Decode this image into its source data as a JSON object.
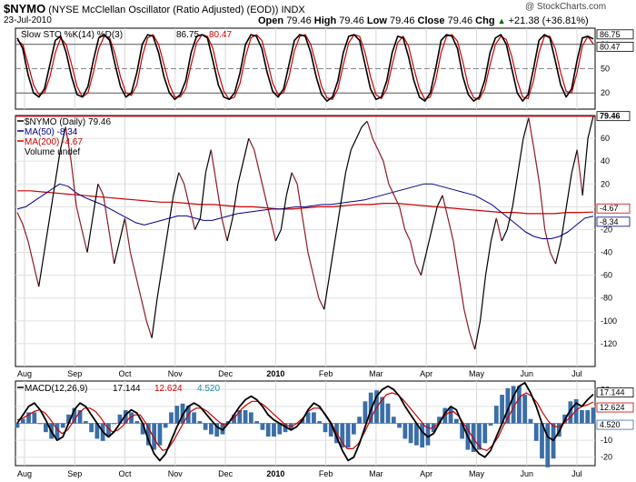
{
  "header": {
    "symbol": "$NYMO",
    "description": "(NYSE McClellan Oscillator (Ratio Adjusted) (EOD))",
    "exchange": "INDX",
    "watermark": "@ StockCharts.com",
    "date": "23-Jul-2010",
    "open_label": "Open",
    "open": "79.46",
    "high_label": "High",
    "high": "79.46",
    "low_label": "Low",
    "low": "79.46",
    "close_label": "Close",
    "close": "79.46",
    "chg_label": "Chg",
    "chg": "+21.38 (+36.81%)",
    "chg_arrow": "▲"
  },
  "chart_data": [
    {
      "type": "line",
      "name": "stochastic",
      "legend": {
        "title": "Slow STO %K(14) %D(3)",
        "k_value": "86.75",
        "d_value": "80.47"
      },
      "ylim": [
        0,
        100
      ],
      "ticks": [
        20,
        50,
        80
      ],
      "reference_lines": [
        20,
        50,
        80
      ],
      "value_labels": [
        "86.75",
        "80.47"
      ],
      "colors": {
        "k": "#000000",
        "d": "#cc0000"
      },
      "series": [
        {
          "name": "%K",
          "values": [
            88,
            75,
            42,
            20,
            15,
            25,
            55,
            85,
            90,
            70,
            40,
            18,
            15,
            28,
            60,
            88,
            92,
            85,
            55,
            28,
            15,
            20,
            45,
            80,
            92,
            90,
            70,
            40,
            20,
            12,
            18,
            35,
            70,
            90,
            92,
            88,
            60,
            30,
            15,
            12,
            20,
            45,
            80,
            92,
            90,
            75,
            45,
            22,
            15,
            25,
            55,
            85,
            92,
            90,
            70,
            40,
            18,
            10,
            15,
            35,
            70,
            90,
            92,
            85,
            55,
            25,
            12,
            15,
            35,
            70,
            90,
            88,
            65,
            35,
            15,
            10,
            20,
            50,
            85,
            92,
            90,
            75,
            40,
            18,
            10,
            15,
            35,
            70,
            88,
            92,
            80,
            50,
            20,
            10,
            18,
            50,
            85,
            92,
            88,
            60,
            30,
            15,
            25,
            60,
            88,
            90,
            86.75
          ]
        },
        {
          "name": "%D",
          "values": [
            85,
            80,
            55,
            30,
            18,
            20,
            40,
            70,
            88,
            80,
            55,
            28,
            15,
            20,
            45,
            75,
            90,
            88,
            68,
            40,
            20,
            17,
            30,
            65,
            88,
            92,
            80,
            55,
            30,
            15,
            15,
            25,
            55,
            82,
            92,
            90,
            75,
            45,
            22,
            12,
            15,
            32,
            65,
            88,
            92,
            85,
            60,
            32,
            18,
            20,
            40,
            72,
            90,
            92,
            80,
            55,
            28,
            14,
            12,
            25,
            55,
            82,
            92,
            90,
            70,
            40,
            18,
            13,
            25,
            55,
            82,
            90,
            78,
            50,
            25,
            12,
            15,
            35,
            70,
            90,
            92,
            84,
            58,
            28,
            14,
            12,
            25,
            55,
            80,
            90,
            86,
            65,
            35,
            15,
            13,
            35,
            70,
            90,
            90,
            75,
            45,
            22,
            20,
            45,
            78,
            90,
            80.47
          ]
        }
      ]
    },
    {
      "type": "line",
      "name": "oscillator",
      "legend": [
        {
          "label": "$NYMO (Daily)",
          "value": "79.46"
        },
        {
          "label": "MA(50)",
          "value": "-8.34"
        },
        {
          "label": "MA(200)",
          "value": "-4.67"
        },
        {
          "label": "Volume undef",
          "value": ""
        }
      ],
      "ylim": [
        -140,
        80
      ],
      "ticks": [
        -120,
        -100,
        -80,
        -60,
        -40,
        -20,
        0,
        20,
        40,
        60
      ],
      "value_labels": [
        "79.46",
        "-4.67",
        "-8.34"
      ],
      "colors": {
        "dark": "#000000",
        "red": "#8b1a2b",
        "ma50": "#00008b",
        "ma200": "#cc0000"
      },
      "series": [
        {
          "name": "$NYMO",
          "segment_colors": "alternating by trend",
          "values": [
            -5,
            -15,
            -30,
            -50,
            -70,
            -40,
            -10,
            20,
            50,
            70,
            40,
            0,
            -20,
            -40,
            -10,
            20,
            10,
            -20,
            -50,
            -30,
            -10,
            -40,
            -60,
            -80,
            -100,
            -115,
            -80,
            -50,
            -20,
            10,
            30,
            20,
            0,
            -20,
            -10,
            30,
            50,
            20,
            -10,
            -30,
            -10,
            20,
            40,
            60,
            50,
            30,
            10,
            -10,
            -30,
            -20,
            10,
            30,
            20,
            -10,
            -40,
            -60,
            -80,
            -90,
            -60,
            -30,
            0,
            30,
            50,
            60,
            70,
            75,
            60,
            50,
            40,
            20,
            10,
            0,
            -20,
            -30,
            -50,
            -60,
            -40,
            -20,
            0,
            10,
            -10,
            -30,
            -60,
            -90,
            -110,
            -125,
            -100,
            -60,
            -30,
            -10,
            -30,
            -20,
            0,
            30,
            60,
            78,
            50,
            20,
            -20,
            -40,
            -50,
            -30,
            0,
            30,
            50,
            10,
            60,
            79.46
          ]
        },
        {
          "name": "MA(50)",
          "values": [
            -2,
            0,
            5,
            10,
            15,
            20,
            18,
            12,
            8,
            5,
            2,
            -2,
            -6,
            -10,
            -14,
            -16,
            -14,
            -12,
            -10,
            -8,
            -8,
            -10,
            -12,
            -12,
            -10,
            -8,
            -6,
            -5,
            -4,
            -3,
            -2,
            -2,
            -1,
            0,
            0,
            1,
            2,
            2,
            3,
            4,
            5,
            6,
            8,
            10,
            12,
            14,
            16,
            18,
            20,
            20,
            18,
            16,
            14,
            12,
            10,
            6,
            2,
            -4,
            -10,
            -16,
            -22,
            -26,
            -28,
            -28,
            -26,
            -22,
            -16,
            -10,
            -8.34
          ]
        },
        {
          "name": "MA(200)",
          "values": [
            14,
            14,
            13,
            12,
            11,
            10,
            9,
            8,
            7,
            6,
            5,
            4,
            4,
            3,
            2,
            2,
            1,
            0,
            0,
            -1,
            -2,
            -2,
            -1,
            0,
            0,
            1,
            2,
            2,
            3,
            3,
            2,
            1,
            0,
            -1,
            -2,
            -3,
            -4,
            -5,
            -5,
            -6,
            -6,
            -6,
            -5,
            -5,
            -4.67
          ]
        }
      ]
    },
    {
      "type": "line",
      "name": "macd",
      "legend": {
        "title": "MACD(12,26,9)",
        "macd": "17.144",
        "signal": "12.624",
        "histogram": "4.520"
      },
      "ylim": [
        -25,
        25
      ],
      "ticks": [
        -20,
        -10,
        0,
        10,
        20
      ],
      "value_labels": [
        "17.144",
        "12.624",
        "4.520"
      ],
      "colors": {
        "macd": "#000000",
        "signal": "#cc0000",
        "histogram": "#3a6ea8"
      },
      "series": [
        {
          "name": "MACD",
          "values": [
            0,
            5,
            10,
            12,
            8,
            2,
            -5,
            -10,
            -8,
            0,
            8,
            12,
            10,
            5,
            0,
            -5,
            -8,
            -5,
            0,
            5,
            8,
            6,
            0,
            -10,
            -18,
            -22,
            -18,
            -10,
            -2,
            5,
            10,
            12,
            10,
            6,
            2,
            -2,
            -4,
            0,
            5,
            10,
            14,
            16,
            14,
            10,
            5,
            2,
            0,
            -2,
            -4,
            -2,
            2,
            8,
            12,
            10,
            5,
            0,
            -8,
            -16,
            -22,
            -20,
            -12,
            -2,
            8,
            16,
            20,
            22,
            20,
            16,
            10,
            5,
            0,
            -5,
            -8,
            -6,
            0,
            6,
            10,
            8,
            0,
            -8,
            -14,
            -18,
            -20,
            -16,
            -8,
            0,
            8,
            16,
            22,
            24,
            18,
            10,
            0,
            -8,
            -10,
            -5,
            2,
            8,
            12,
            10,
            14,
            17.144
          ]
        },
        {
          "name": "Signal",
          "values": [
            2,
            3,
            5,
            7,
            8,
            6,
            2,
            -3,
            -6,
            -4,
            1,
            6,
            9,
            9,
            7,
            3,
            -2,
            -5,
            -4,
            -1,
            3,
            5,
            5,
            0,
            -6,
            -12,
            -16,
            -15,
            -10,
            -4,
            2,
            7,
            9,
            9,
            7,
            4,
            1,
            -1,
            1,
            4,
            8,
            11,
            13,
            13,
            11,
            8,
            5,
            2,
            -1,
            -2,
            0,
            3,
            7,
            9,
            9,
            6,
            1,
            -5,
            -11,
            -15,
            -15,
            -12,
            -6,
            1,
            8,
            13,
            17,
            18,
            17,
            14,
            10,
            6,
            2,
            -2,
            -3,
            -1,
            3,
            6,
            7,
            4,
            -1,
            -6,
            -11,
            -15,
            -16,
            -13,
            -8,
            -1,
            5,
            11,
            16,
            18,
            16,
            12,
            6,
            1,
            -2,
            -2,
            1,
            4,
            8,
            10,
            11,
            12.624
          ]
        }
      ]
    }
  ],
  "months": [
    "Aug",
    "Sep",
    "Oct",
    "Nov",
    "Dec",
    "2010",
    "Feb",
    "Mar",
    "Apr",
    "May",
    "Jun",
    "Jul"
  ]
}
